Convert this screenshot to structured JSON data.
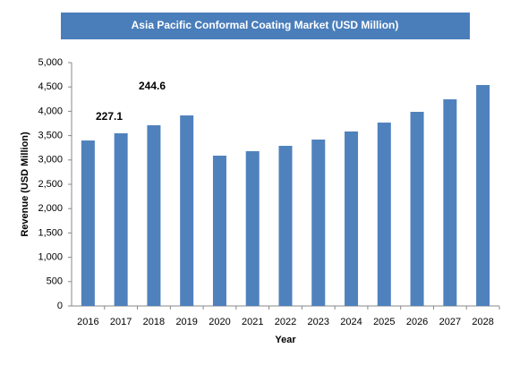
{
  "chart_data": {
    "type": "bar",
    "title": "Asia Pacific Conformal Coating Market (USD Million)",
    "x_label": "Year",
    "y_label": "Revenue (USD Million)",
    "categories": [
      "2016",
      "2017",
      "2018",
      "2019",
      "2020",
      "2021",
      "2022",
      "2023",
      "2024",
      "2025",
      "2026",
      "2027",
      "2028"
    ],
    "values": [
      3400,
      3548,
      3713,
      3915,
      3088,
      3180,
      3290,
      3419,
      3585,
      3768,
      3989,
      4246,
      4540
    ],
    "color": "#4f81bd",
    "ylim": [
      0,
      5000
    ],
    "yticks": [
      0,
      500,
      {
        "value": 1000,
        "label": "1,000"
      },
      {
        "value": 1500,
        "label": "1,500"
      },
      {
        "value": 2000,
        "label": "2,000"
      },
      {
        "value": 2500,
        "label": "2,500"
      },
      {
        "value": 3000,
        "label": "3,000"
      },
      {
        "value": 3500,
        "label": "3,500"
      },
      {
        "value": 4000,
        "label": "4,000"
      },
      {
        "value": 4500,
        "label": "4,500"
      },
      {
        "value": 5000,
        "label": "5,000"
      }
    ],
    "annotations": [
      "227.1",
      "244.6"
    ],
    "grid": false
  }
}
